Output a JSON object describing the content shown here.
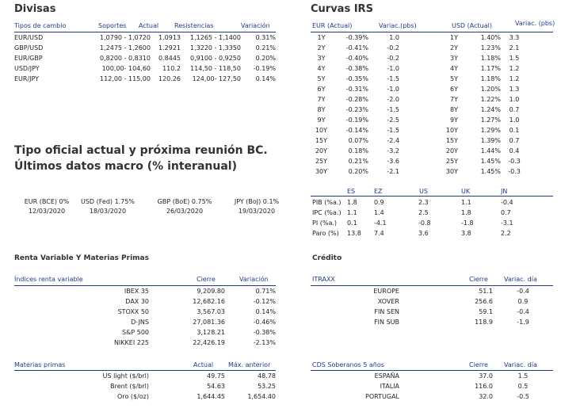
{
  "divisas": {
    "title": "Divisas",
    "headers": [
      "Tipos de cambio",
      "Soportes",
      "Actual",
      "Resistencias",
      "Variación"
    ],
    "rows": [
      [
        "EUR/USD",
        "1,0790 - 1,0720",
        "1.0913",
        "1,1265 - 1,1400",
        "0.31%"
      ],
      [
        "GBP/USD",
        "1,2475 - 1,2600",
        "1.2921",
        "1,3220 - 1,3350",
        "0.21%"
      ],
      [
        "EUR/GBP",
        "0,8200 - 0,8310",
        "0.8445",
        "0,9100 - 0,9250",
        "0.20%"
      ],
      [
        "USD/JPY",
        "100,00- 104,60",
        "110.2",
        "114,50 - 118,50",
        "-0.19%"
      ],
      [
        "EUR/JPY",
        "112,00 - 115,00",
        "120.26",
        "124,00- 127,50",
        "0.14%"
      ]
    ]
  },
  "curvas": {
    "title": "Curvas IRS",
    "headers": [
      "EUR (Actual)",
      "Variac.(pbs)",
      "USD (Actual)",
      "Variac. (pbs)"
    ],
    "rows": [
      [
        "1Y",
        "-0.39%",
        "1.0",
        "1Y",
        "1.40%",
        "3.3"
      ],
      [
        "2Y",
        "-0.41%",
        "-0.2",
        "2Y",
        "1.23%",
        "2.1"
      ],
      [
        "3Y",
        "-0.40%",
        "-0.2",
        "3Y",
        "1.18%",
        "1.5"
      ],
      [
        "4Y",
        "-0.38%",
        "-1.0",
        "4Y",
        "1.17%",
        "1.2"
      ],
      [
        "5Y",
        "-0.35%",
        "-1.5",
        "5Y",
        "1.18%",
        "1.2"
      ],
      [
        "6Y",
        "-0.31%",
        "-1.0",
        "6Y",
        "1.20%",
        "1.3"
      ],
      [
        "7Y",
        "-0.28%",
        "-2.0",
        "7Y",
        "1.22%",
        "1.0"
      ],
      [
        "8Y",
        "-0.23%",
        "-1.5",
        "8Y",
        "1.24%",
        "0.7"
      ],
      [
        "9Y",
        "-0.19%",
        "-2.5",
        "9Y",
        "1.27%",
        "1.0"
      ],
      [
        "10Y",
        "-0.14%",
        "-1.5",
        "10Y",
        "1.29%",
        "0.1"
      ],
      [
        "15Y",
        "0.07%",
        "-2.4",
        "15Y",
        "1.39%",
        "0.7"
      ],
      [
        "20Y",
        "0.18%",
        "-3.2",
        "20Y",
        "1.44%",
        "0.4"
      ],
      [
        "25Y",
        "0.21%",
        "-3.6",
        "25Y",
        "1.45%",
        "-0.3"
      ],
      [
        "30Y",
        "0.20%",
        "-2.1",
        "30Y",
        "1.45%",
        "-0.3"
      ]
    ]
  },
  "bc": {
    "title_line1": "Tipo oficial actual y próxima reunión BC.",
    "title_line2": "Últimos datos macro (% interanual)",
    "rates": [
      {
        "label": "EUR (BCE) 0%",
        "date": "12/03/2020"
      },
      {
        "label": "USD (Fed) 1.75%",
        "date": "18/03/2020"
      },
      {
        "label": "GBP (BoE) 0.75%",
        "date": "26/03/2020"
      },
      {
        "label": "JPY (BoJ) 0.1%",
        "date": "19/03/2020"
      }
    ]
  },
  "macro": {
    "headers": [
      "ES",
      "EZ",
      "US",
      "UK",
      "JN"
    ],
    "rows": [
      [
        "PIB (%a.)",
        "1.8",
        "0.9",
        "2.3",
        "1.1",
        "-0.4"
      ],
      [
        "IPC (%a.)",
        "1.1",
        "1.4",
        "2.5",
        "1.8",
        "0.7"
      ],
      [
        "PI (%a.)",
        "0.1",
        "-4.1",
        "-0.8",
        "-1.8",
        "-3.1"
      ],
      [
        "Paro (%)",
        "13.8",
        "7.4",
        "3.6",
        "3.8",
        "2.2"
      ]
    ]
  },
  "renta": {
    "title": "Renta Variable Y Materias Primas",
    "indices_headers": [
      "Índices renta variable",
      "Cierre",
      "Variación"
    ],
    "indices": [
      [
        "IBEX 35",
        "9,209.80",
        "0.71%"
      ],
      [
        "DAX 30",
        "12,682.16",
        "-0.12%"
      ],
      [
        "STOXX 50",
        "3,567.03",
        "0.14%"
      ],
      [
        "D-JNS",
        "27,081.36",
        "-0.46%"
      ],
      [
        "S&P 500",
        "3,128.21",
        "-0.38%"
      ],
      [
        "NIKKEI 225",
        "22,426.19",
        "-2.13%"
      ]
    ],
    "materias_headers": [
      "Materias primas",
      "Actual",
      "Máx. anterior"
    ],
    "materias": [
      [
        "US light ($/brl)",
        "49.75",
        "48.78"
      ],
      [
        "Brent ($/brl)",
        "54.63",
        "53.25"
      ],
      [
        "Oro ($/oz)",
        "1,644.45",
        "1,654.40"
      ]
    ]
  },
  "credito": {
    "title": "Crédito",
    "itraxx_headers": [
      "ITRAXX",
      "Cierre",
      "Variac. día"
    ],
    "itraxx": [
      [
        "EUROPE",
        "51.1",
        "-0.4"
      ],
      [
        "XOVER",
        "256.6",
        "0.9"
      ],
      [
        "FIN SEN",
        "59.1",
        "-0.4"
      ],
      [
        "FIN SUB",
        "118.9",
        "-1.9"
      ]
    ],
    "cds_headers": [
      "CDS Soberanos 5 años",
      "Cierre",
      "Variac. día"
    ],
    "cds": [
      [
        "ESPAÑA",
        "37.0",
        "1.5"
      ],
      [
        "ITALIA",
        "116.0",
        "0.5"
      ],
      [
        "PORTUGAL",
        "32.0",
        "-0.5"
      ]
    ]
  }
}
